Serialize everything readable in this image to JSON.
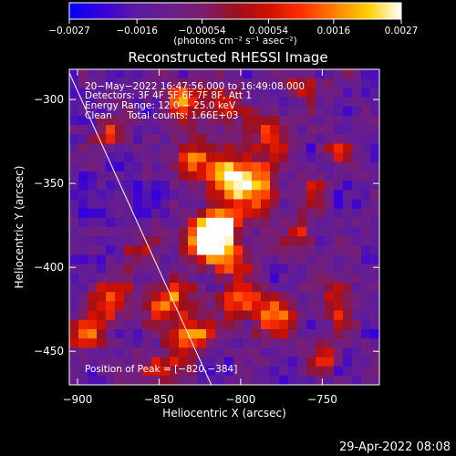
{
  "chart_data": {
    "type": "heatmap",
    "title": "Reconstructed RHESSI Image",
    "xlabel": "Heliocentric X (arcsec)",
    "ylabel": "Heliocentric Y (arcsec)",
    "xlim": [
      -905,
      -715
    ],
    "ylim": [
      -470,
      -282
    ],
    "x_ticks": [
      -900,
      -850,
      -800,
      -750
    ],
    "y_ticks": [
      -300,
      -350,
      -400,
      -450
    ],
    "x_tick_labels": [
      "−900",
      "−850",
      "−800",
      "−750"
    ],
    "y_tick_labels": [
      "−300",
      "−350",
      "−400",
      "−450"
    ],
    "colorbar": {
      "range": [
        -0.0027,
        0.0027
      ],
      "tick_values": [
        -0.0027,
        -0.0016,
        -0.00054,
        0.00054,
        0.0016,
        0.0027
      ],
      "tick_labels": [
        "−0.0027",
        "−0.0016",
        "−0.00054",
        "0.00054",
        "0.0016",
        "0.0027"
      ],
      "unit_label": "(photons cm⁻² s⁻¹ asec⁻²)"
    },
    "annotations": [
      "20−May−2022 16:47:56.000 to 16:49:08.000",
      "Detectors: 3F 4F 5F 6F 7F 8F, Att 1",
      "Energy Range: 12.0 − 25.0 keV",
      "Clean     Total counts: 1.66E+03"
    ],
    "peak_label": "Position of Peak = [−820,−384]",
    "peak_position": [
      -820,
      -384
    ],
    "colormap": [
      "#0000ff",
      "#3a00d8",
      "#5a1aa0",
      "#6a1e8a",
      "#7a1e70",
      "#9a1020",
      "#d01000",
      "#ff3000",
      "#ff8000",
      "#ffd000",
      "#ffffff"
    ],
    "limb_line": {
      "from": [
        -906,
        -282
      ],
      "to": [
        -818,
        -470
      ]
    }
  },
  "footer": {
    "timestamp": "29-Apr-2022 08:08"
  }
}
